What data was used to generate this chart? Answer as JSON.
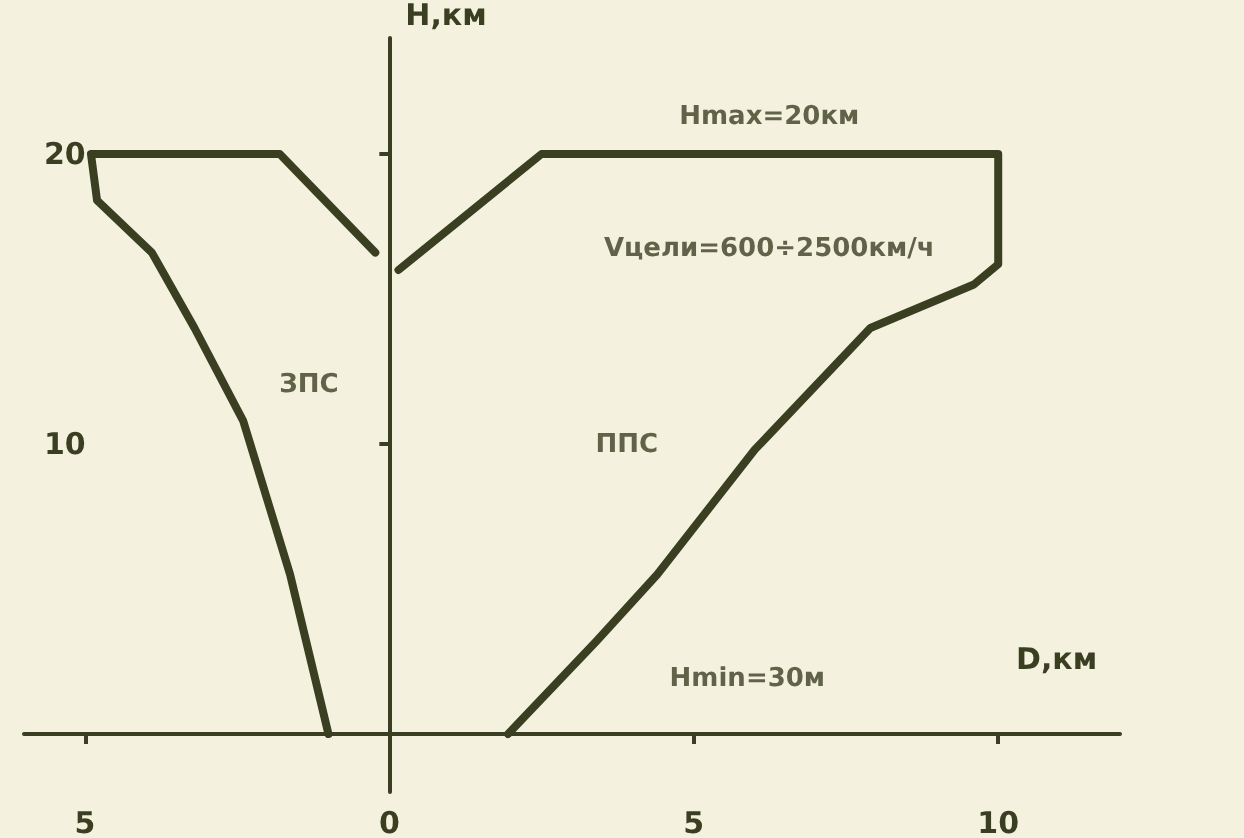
{
  "chart_data": {
    "type": "line",
    "xlabel": "D,км",
    "ylabel": "H,км",
    "xlim": [
      -6,
      12
    ],
    "ylim": [
      -2,
      24
    ],
    "xticks": [
      {
        "value": -5,
        "label": "5"
      },
      0,
      5,
      {
        "value": 10,
        "label": "10"
      }
    ],
    "yticks": [
      10,
      20
    ],
    "series": [
      {
        "color": "#3b3f22",
        "x": [
          -1.0,
          -1.63,
          -2.4,
          -3.2,
          -3.9,
          -4.8,
          -4.9,
          -1.8,
          -0.23
        ],
        "values": [
          0,
          5.5,
          10.8,
          14.0,
          16.6,
          18.4,
          20,
          20,
          16.6
        ]
      },
      {
        "color": "#3b3f22",
        "x": [
          0.15,
          2.5,
          10,
          10,
          9.6,
          7.9,
          6.0,
          4.4,
          3.4,
          1.95
        ],
        "values": [
          16,
          20,
          20,
          16.2,
          15.5,
          14.0,
          9.8,
          5.5,
          3.2,
          0
        ]
      }
    ],
    "annotations": [
      "ЗПС",
      "ППС",
      "Hmax=20км",
      "Vцели=600÷2500км/ч",
      "Hmin=30м"
    ],
    "marker": "none",
    "line_style": "solid"
  }
}
